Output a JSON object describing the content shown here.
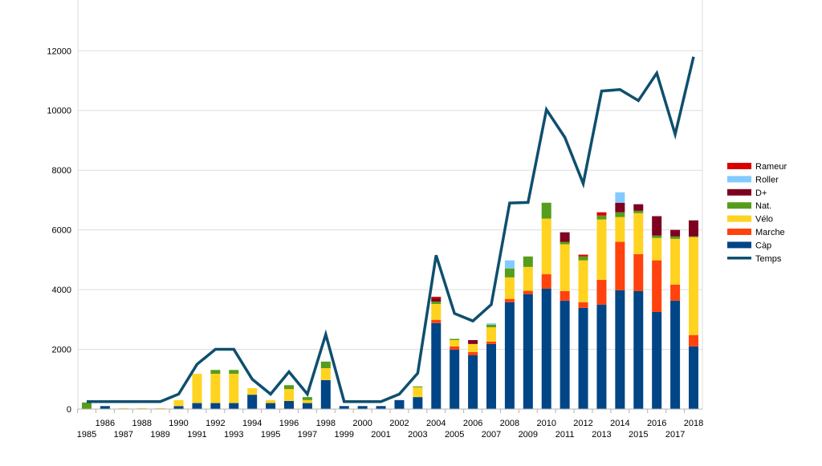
{
  "chart_data": {
    "type": "bar",
    "stacked": true,
    "title": "",
    "xlabel": "",
    "ylabel": "",
    "ylim": [
      0,
      13700
    ],
    "yticks": [
      0,
      2000,
      4000,
      6000,
      8000,
      10000,
      12000
    ],
    "grid": "horizontal",
    "legend_position": "right",
    "categories": [
      "1985",
      "1986",
      "1987",
      "1988",
      "1989",
      "1990",
      "1991",
      "1992",
      "1993",
      "1994",
      "1995",
      "1996",
      "1997",
      "1998",
      "1999",
      "2000",
      "2001",
      "2002",
      "2003",
      "2004",
      "2005",
      "2006",
      "2007",
      "2008",
      "2009",
      "2010",
      "2011",
      "2012",
      "2013",
      "2014",
      "2015",
      "2016",
      "2017",
      "2018"
    ],
    "series": [
      {
        "name": "Càp",
        "color": "#004586",
        "values": [
          0,
          100,
          0,
          0,
          0,
          100,
          200,
          200,
          200,
          480,
          200,
          270,
          200,
          970,
          100,
          100,
          100,
          300,
          400,
          2880,
          1990,
          1800,
          2180,
          3580,
          3850,
          4030,
          3630,
          3390,
          3500,
          3980,
          3950,
          3250,
          3630,
          2100
        ]
      },
      {
        "name": "Marche",
        "color": "#ff420e",
        "values": [
          0,
          0,
          0,
          0,
          0,
          0,
          0,
          0,
          0,
          0,
          0,
          0,
          0,
          0,
          0,
          0,
          0,
          0,
          0,
          110,
          110,
          110,
          80,
          110,
          110,
          490,
          320,
          190,
          830,
          1620,
          1240,
          1730,
          540,
          380
        ]
      },
      {
        "name": "Vélo",
        "color": "#ffd320",
        "values": [
          0,
          0,
          30,
          30,
          30,
          200,
          980,
          980,
          980,
          220,
          100,
          400,
          100,
          400,
          0,
          0,
          0,
          0,
          330,
          530,
          210,
          270,
          480,
          720,
          800,
          1860,
          1570,
          1400,
          2020,
          830,
          1370,
          750,
          1530,
          3280
        ]
      },
      {
        "name": "Nat.",
        "color": "#579d1c",
        "values": [
          220,
          0,
          0,
          0,
          0,
          0,
          0,
          130,
          130,
          0,
          0,
          130,
          100,
          220,
          0,
          0,
          0,
          0,
          30,
          80,
          40,
          0,
          80,
          300,
          350,
          530,
          80,
          130,
          130,
          160,
          80,
          80,
          80,
          20
        ]
      },
      {
        "name": "D+",
        "color": "#7e0021",
        "values": [
          0,
          0,
          0,
          0,
          0,
          0,
          0,
          0,
          0,
          0,
          0,
          0,
          0,
          0,
          0,
          0,
          0,
          0,
          0,
          110,
          0,
          130,
          0,
          0,
          0,
          0,
          320,
          0,
          0,
          320,
          220,
          650,
          220,
          540
        ]
      },
      {
        "name": "Roller",
        "color": "#83caff",
        "values": [
          0,
          0,
          0,
          0,
          0,
          0,
          0,
          0,
          0,
          0,
          0,
          0,
          0,
          0,
          0,
          0,
          0,
          0,
          0,
          0,
          0,
          0,
          50,
          270,
          0,
          0,
          0,
          0,
          0,
          350,
          0,
          0,
          0,
          0
        ]
      },
      {
        "name": "Rameur",
        "color": "#d90000",
        "values": [
          0,
          0,
          0,
          0,
          0,
          0,
          0,
          0,
          0,
          0,
          0,
          0,
          0,
          0,
          0,
          0,
          0,
          0,
          0,
          50,
          0,
          0,
          0,
          0,
          0,
          0,
          0,
          60,
          110,
          0,
          0,
          0,
          0,
          0
        ]
      }
    ],
    "line_series": {
      "name": "Temps",
      "color": "#0e4f6e",
      "values": [
        250,
        250,
        250,
        250,
        250,
        500,
        1500,
        2000,
        2000,
        1000,
        500,
        1250,
        500,
        2500,
        250,
        250,
        250,
        500,
        1200,
        5150,
        3200,
        2950,
        3500,
        6900,
        6920,
        10030,
        9100,
        7550,
        10650,
        10700,
        10330,
        11250,
        9200,
        11800
      ]
    },
    "legend_order": [
      "Rameur",
      "Roller",
      "D+",
      "Nat.",
      "Vélo",
      "Marche",
      "Càp",
      "Temps"
    ]
  }
}
